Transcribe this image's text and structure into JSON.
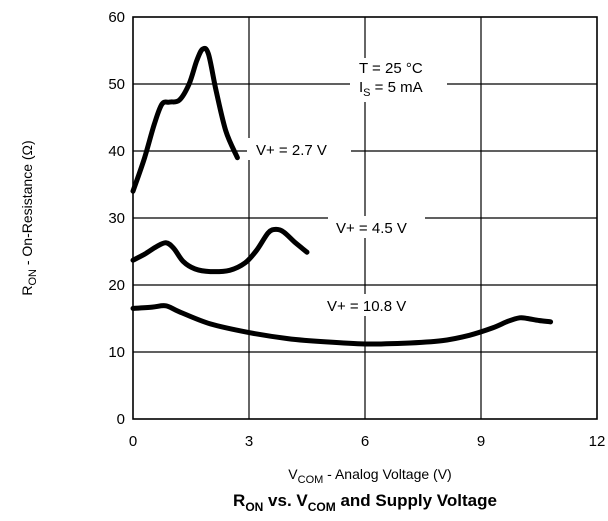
{
  "chart_data": {
    "type": "line",
    "title": {
      "main": "R",
      "main_sub": "ON",
      "mid": " vs. V",
      "mid_sub": "COM",
      "end": " and Supply Voltage"
    },
    "xlabel": {
      "main": "V",
      "sub": "COM",
      "rest": " - Analog Voltage  (V)"
    },
    "ylabel": {
      "main": "R",
      "sub": "ON",
      "rest": " - On-Resistance (Ω)"
    },
    "xlim": [
      0,
      12
    ],
    "ylim": [
      0,
      60
    ],
    "x_ticks": [
      0,
      3,
      6,
      9,
      12
    ],
    "y_ticks": [
      0,
      10,
      20,
      30,
      40,
      50,
      60
    ],
    "grid": true,
    "conditions": {
      "temp": "T = 25 °C",
      "current_main": "I",
      "current_sub": "S",
      "current_rest": " = 5 mA"
    },
    "series": [
      {
        "name": "V+ = 2.7 V",
        "x": [
          0,
          0.3,
          0.55,
          0.75,
          0.95,
          1.2,
          1.45,
          1.65,
          1.8,
          1.95,
          2.15,
          2.4,
          2.7
        ],
        "values": [
          34,
          39,
          44,
          47,
          47.3,
          47.6,
          50,
          53.5,
          55.2,
          54.5,
          49,
          43,
          39
        ]
      },
      {
        "name": "V+ = 4.5 V",
        "x": [
          0,
          0.3,
          0.6,
          0.85,
          1.05,
          1.3,
          1.6,
          2.0,
          2.5,
          2.9,
          3.2,
          3.5,
          3.7,
          3.9,
          4.2,
          4.5
        ],
        "values": [
          23.7,
          24.6,
          25.7,
          26.3,
          25.5,
          23.5,
          22.4,
          22,
          22.2,
          23.3,
          25.2,
          27.8,
          28.3,
          27.9,
          26.3,
          24.9
        ]
      },
      {
        "name": "V+ = 10.8 V",
        "x": [
          0,
          0.5,
          0.85,
          1.2,
          2.0,
          3.0,
          4.0,
          5.0,
          6.0,
          7.0,
          8.0,
          8.7,
          9.3,
          9.7,
          10.0,
          10.2,
          10.5,
          10.8
        ],
        "values": [
          16.5,
          16.7,
          16.9,
          16,
          14.2,
          12.9,
          12,
          11.5,
          11.2,
          11.3,
          11.7,
          12.5,
          13.6,
          14.6,
          15.1,
          15,
          14.7,
          14.5
        ]
      }
    ],
    "series_labels": [
      "V+ = 2.7 V",
      "V+ = 4.5 V",
      "V+ = 10.8 V"
    ]
  }
}
